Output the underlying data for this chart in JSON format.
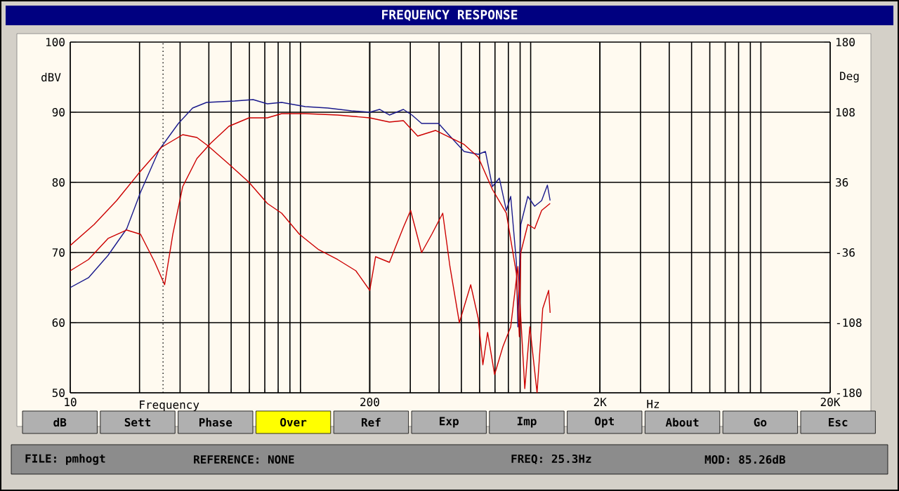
{
  "chart_data": {
    "type": "line",
    "title": "FREQUENCY RESPONSE",
    "xlabel": "Frequency",
    "ylabel": "dBV",
    "y2label": "Deg",
    "log": "x",
    "grid": true,
    "xlim": [
      10,
      20000
    ],
    "xticks": [
      10,
      200,
      {
        "value": 2000,
        "label": "2K"
      },
      {
        "value": 20000,
        "label": "20K"
      }
    ],
    "ylim": [
      50,
      100
    ],
    "yticks": [
      50,
      60,
      70,
      80,
      90,
      100
    ],
    "y2lim": [
      -180,
      180
    ],
    "y2ticks": [
      -180,
      -108,
      -36,
      36,
      108,
      180
    ],
    "ref_lines": [
      {
        "axis": "x",
        "value": 25.3,
        "line_style": "dotted",
        "color": "#000000"
      }
    ],
    "series": [
      {
        "color": "#1a1a8c",
        "x": [
          10,
          12,
          14.6,
          17.6,
          20.2,
          24.3,
          29.5,
          34,
          39.1,
          51.8,
          62.3,
          71.8,
          82.9,
          104.9,
          131.4,
          166.6,
          200,
          220.6,
          243.5,
          280,
          305,
          336,
          398,
          446,
          514,
          592,
          636,
          682,
          731,
          784,
          819,
          867,
          880,
          906,
          972,
          1041,
          1116,
          1182,
          1215
        ],
        "values": [
          65,
          66.4,
          69.6,
          73.4,
          78.6,
          84.6,
          88.4,
          90.6,
          91.4,
          91.6,
          91.8,
          91.2,
          91.4,
          90.8,
          90.6,
          90.2,
          90,
          90.4,
          89.6,
          90.4,
          89.6,
          88.4,
          88.4,
          86.6,
          84.4,
          84,
          84.4,
          79.4,
          80.6,
          76,
          78,
          68.6,
          59.4,
          74,
          78,
          76.6,
          77.4,
          79.6,
          77.4
        ]
      },
      {
        "color": "#cc0000",
        "x": [
          10,
          12,
          14.6,
          17.6,
          20.2,
          23.3,
          25.7,
          27.9,
          30.8,
          35.5,
          40.8,
          48.9,
          59.8,
          71.8,
          82.9,
          104.9,
          145,
          200,
          243.5,
          280,
          323,
          386,
          514,
          592,
          682,
          784,
          867,
          893,
          906,
          972,
          1041,
          1116,
          1215
        ],
        "values": [
          67.4,
          69,
          72,
          73.2,
          72.6,
          68.6,
          65.4,
          72.6,
          79.4,
          83.4,
          85.6,
          88,
          89.2,
          89.2,
          89.8,
          89.8,
          89.6,
          89.2,
          88.6,
          88.8,
          86.6,
          87.4,
          85.4,
          83.6,
          79,
          75.6,
          67,
          58,
          70,
          74,
          73.4,
          76,
          77
        ]
      },
      {
        "color": "#cc0000",
        "x": [
          10,
          12.7,
          15.9,
          20.2,
          24.9,
          30.8,
          35.5,
          39.7,
          48.9,
          59.8,
          71.8,
          82.9,
          99,
          120,
          145,
          174,
          200,
          212,
          243.5,
          280,
          301,
          336,
          372,
          415,
          446,
          490,
          549,
          592,
          620,
          650,
          697,
          758,
          819,
          880,
          943,
          992,
          1066,
          1128,
          1197,
          1215
        ],
        "values": [
          71,
          74,
          77.4,
          81.6,
          85,
          86.8,
          86.4,
          85.2,
          82.6,
          80,
          77,
          75.6,
          72.6,
          70.4,
          69,
          67.4,
          64.6,
          69.4,
          68.6,
          73.6,
          76,
          70,
          72.6,
          75.6,
          68,
          60,
          65.4,
          60.6,
          54,
          58.6,
          52.6,
          56.6,
          59.4,
          68,
          50.6,
          59.4,
          50,
          62,
          64.6,
          61.4
        ]
      }
    ],
    "annotations": [
      "Hz",
      "dB",
      "Sett",
      "Phase",
      "Over",
      "Ref",
      "Exp",
      "Imp",
      "Opt",
      "About",
      "Go",
      "Esc",
      "FILE: pmhogt",
      "REFERENCE: NONE",
      "FREQ: 25.3Hz",
      "MOD: 85.26dB"
    ]
  }
}
